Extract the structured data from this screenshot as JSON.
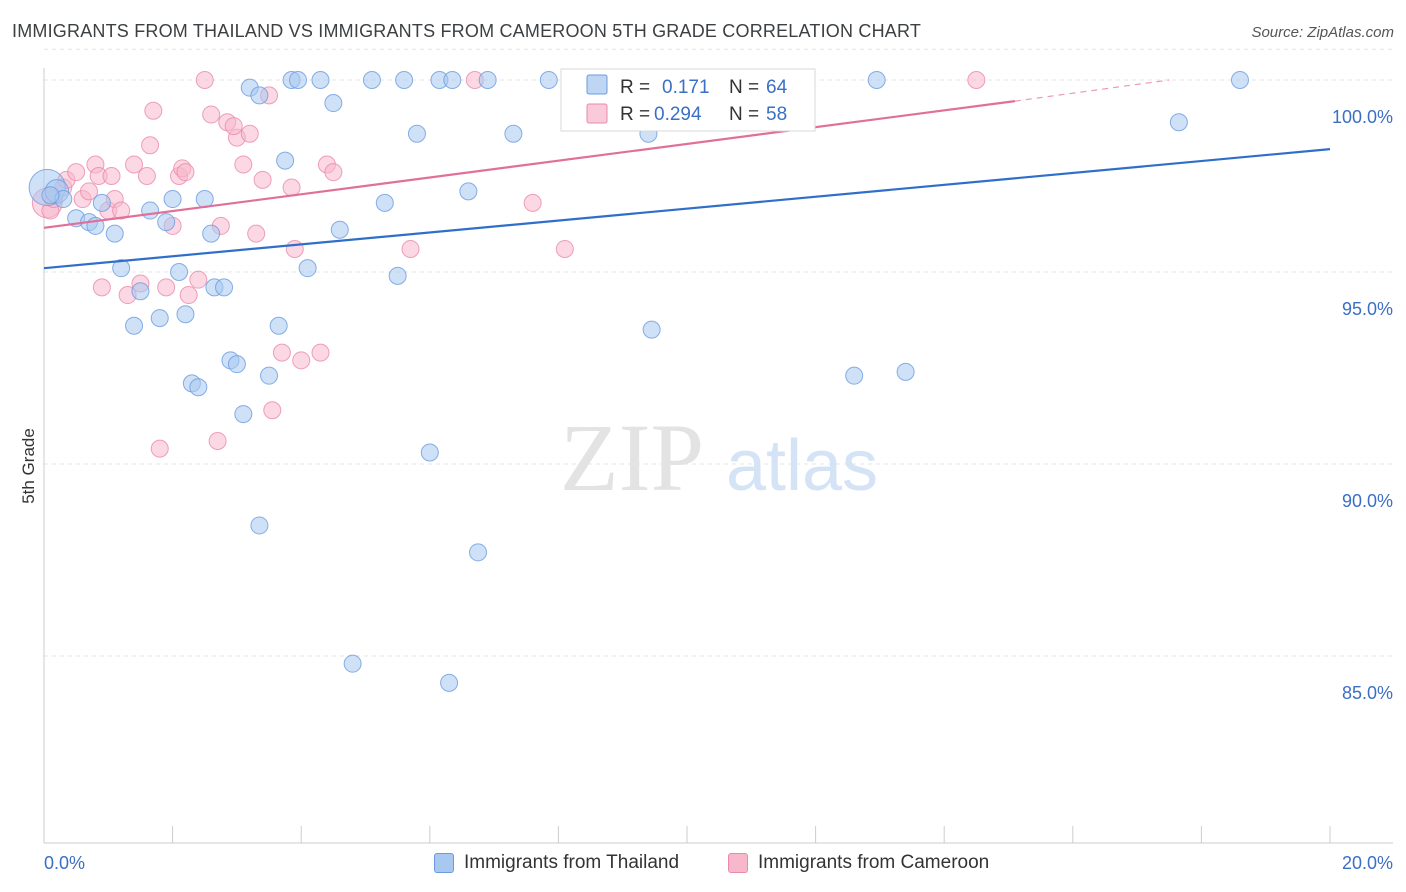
{
  "title": "IMMIGRANTS FROM THAILAND VS IMMIGRANTS FROM CAMEROON 5TH GRADE CORRELATION CHART",
  "source": "Source: ZipAtlas.com",
  "watermark": {
    "zip": "ZIP",
    "atlas": "atlas"
  },
  "legend": {
    "r_label": "R =",
    "n_label": "N =",
    "thailand": {
      "r": "0.171",
      "n": "64"
    },
    "cameroon": {
      "r": "0.294",
      "n": "58"
    }
  },
  "colors": {
    "thailand_fill": "#a8c8f0",
    "thailand_stroke": "#6a9be0",
    "thailand_line": "#2f6fc9",
    "cameroon_fill": "#f7b8cc",
    "cameroon_stroke": "#ea8aab",
    "cameroon_line": "#e0709a",
    "tick_text": "#3a6fc4"
  },
  "chart_data": {
    "type": "scatter",
    "xlabel": "",
    "ylabel": "5th Grade",
    "xlim": [
      0,
      20
    ],
    "ylim": [
      80,
      100.8
    ],
    "x_tick_labels": [
      "0.0%",
      "20.0%"
    ],
    "y_ticks": [
      85,
      90,
      95,
      100
    ],
    "y_tick_labels": [
      "85.0%",
      "90.0%",
      "95.0%",
      "100.0%"
    ],
    "grid": true,
    "legend_position": "top-center",
    "series": [
      {
        "name": "Immigrants from Thailand",
        "r": 0.171,
        "n": 64,
        "trend": {
          "x0": 0,
          "y0": 95.1,
          "x1": 20,
          "y1": 98.2
        },
        "points": [
          [
            0.05,
            97.2,
            22
          ],
          [
            0.2,
            97.1,
            14
          ],
          [
            0.3,
            96.9,
            10
          ],
          [
            0.5,
            96.4,
            10
          ],
          [
            0.7,
            96.3,
            10
          ],
          [
            0.8,
            96.2,
            10
          ],
          [
            1.1,
            96.0,
            10
          ],
          [
            1.2,
            95.1,
            10
          ],
          [
            1.4,
            93.6,
            10
          ],
          [
            1.5,
            94.5,
            10
          ],
          [
            1.65,
            96.6,
            10
          ],
          [
            1.8,
            93.8,
            10
          ],
          [
            1.9,
            96.3,
            10
          ],
          [
            2.0,
            96.9,
            10
          ],
          [
            2.1,
            95.0,
            10
          ],
          [
            2.2,
            93.9,
            10
          ],
          [
            2.3,
            92.1,
            10
          ],
          [
            2.4,
            92.0,
            10
          ],
          [
            2.5,
            96.9,
            10
          ],
          [
            2.65,
            94.6,
            10
          ],
          [
            2.8,
            94.6,
            10
          ],
          [
            2.9,
            92.7,
            10
          ],
          [
            3.0,
            92.6,
            10
          ],
          [
            3.1,
            91.3,
            10
          ],
          [
            3.2,
            99.8,
            10
          ],
          [
            3.35,
            99.6,
            10
          ],
          [
            3.35,
            88.4,
            10
          ],
          [
            3.5,
            92.3,
            10
          ],
          [
            3.65,
            93.6,
            10
          ],
          [
            3.75,
            97.9,
            10
          ],
          [
            3.85,
            100.0,
            10
          ],
          [
            3.95,
            100.0,
            10
          ],
          [
            4.1,
            95.1,
            10
          ],
          [
            4.3,
            100.0,
            10
          ],
          [
            4.5,
            99.4,
            10
          ],
          [
            4.6,
            96.1,
            10
          ],
          [
            4.8,
            84.8,
            10
          ],
          [
            5.1,
            100.0,
            10
          ],
          [
            5.3,
            96.8,
            10
          ],
          [
            5.5,
            94.9,
            10
          ],
          [
            5.6,
            100.0,
            10
          ],
          [
            5.8,
            98.6,
            10
          ],
          [
            6.0,
            90.3,
            10
          ],
          [
            6.15,
            100.0,
            10
          ],
          [
            6.3,
            84.3,
            10
          ],
          [
            6.35,
            100.0,
            10
          ],
          [
            6.6,
            97.1,
            10
          ],
          [
            6.75,
            87.7,
            10
          ],
          [
            6.9,
            100.0,
            10
          ],
          [
            7.3,
            98.6,
            10
          ],
          [
            7.85,
            100.0,
            10
          ],
          [
            9.4,
            98.6,
            10
          ],
          [
            9.45,
            93.5,
            10
          ],
          [
            9.6,
            100.0,
            10
          ],
          [
            11.4,
            100.0,
            10
          ],
          [
            11.5,
            100.0,
            10
          ],
          [
            12.6,
            92.3,
            10
          ],
          [
            12.95,
            100.0,
            10
          ],
          [
            13.4,
            92.4,
            10
          ],
          [
            17.65,
            98.9,
            10
          ],
          [
            18.6,
            100.0,
            10
          ],
          [
            0.1,
            97.0,
            10
          ],
          [
            0.9,
            96.8,
            10
          ],
          [
            2.6,
            96.0,
            10
          ]
        ]
      },
      {
        "name": "Immigrants from Cameroon",
        "r": 0.294,
        "n": 58,
        "trend": {
          "x0": 0,
          "y0": 96.15,
          "x1": 15.1,
          "y1": 99.45,
          "dash_to_x": 17.5,
          "dash_to_y": 100.0
        },
        "points": [
          [
            0.05,
            96.8,
            18
          ],
          [
            0.1,
            96.6,
            10
          ],
          [
            0.3,
            97.2,
            10
          ],
          [
            0.35,
            97.4,
            10
          ],
          [
            0.5,
            97.6,
            10
          ],
          [
            0.6,
            96.9,
            10
          ],
          [
            0.7,
            97.1,
            10
          ],
          [
            0.8,
            97.8,
            10
          ],
          [
            0.85,
            97.5,
            10
          ],
          [
            0.9,
            94.6,
            10
          ],
          [
            1.0,
            96.6,
            10
          ],
          [
            1.1,
            96.9,
            10
          ],
          [
            1.2,
            96.6,
            10
          ],
          [
            1.3,
            94.4,
            10
          ],
          [
            1.4,
            97.8,
            10
          ],
          [
            1.5,
            94.7,
            10
          ],
          [
            1.6,
            97.5,
            10
          ],
          [
            1.65,
            98.3,
            10
          ],
          [
            1.7,
            99.2,
            10
          ],
          [
            1.8,
            90.4,
            10
          ],
          [
            1.9,
            94.6,
            10
          ],
          [
            2.0,
            96.2,
            10
          ],
          [
            2.1,
            97.5,
            10
          ],
          [
            2.15,
            97.7,
            10
          ],
          [
            2.2,
            97.6,
            10
          ],
          [
            2.25,
            94.4,
            10
          ],
          [
            2.4,
            94.8,
            10
          ],
          [
            2.5,
            100.0,
            10
          ],
          [
            2.6,
            99.1,
            10
          ],
          [
            2.7,
            90.6,
            10
          ],
          [
            2.75,
            96.2,
            10
          ],
          [
            2.85,
            98.9,
            10
          ],
          [
            3.0,
            98.5,
            10
          ],
          [
            3.1,
            97.8,
            10
          ],
          [
            3.2,
            98.6,
            10
          ],
          [
            3.3,
            96.0,
            10
          ],
          [
            3.4,
            97.4,
            10
          ],
          [
            3.5,
            99.6,
            10
          ],
          [
            3.55,
            91.4,
            10
          ],
          [
            3.7,
            92.9,
            10
          ],
          [
            3.85,
            97.2,
            10
          ],
          [
            3.9,
            95.6,
            10
          ],
          [
            4.0,
            92.7,
            10
          ],
          [
            4.3,
            92.9,
            10
          ],
          [
            4.4,
            97.8,
            10
          ],
          [
            4.5,
            97.6,
            10
          ],
          [
            5.7,
            95.6,
            10
          ],
          [
            6.7,
            100.0,
            10
          ],
          [
            7.6,
            96.8,
            10
          ],
          [
            8.1,
            95.6,
            10
          ],
          [
            9.0,
            100.0,
            10
          ],
          [
            9.2,
            99.7,
            10
          ],
          [
            11.5,
            100.0,
            10
          ],
          [
            11.8,
            100.0,
            10
          ],
          [
            14.5,
            100.0,
            10
          ],
          [
            0.15,
            96.9,
            10
          ],
          [
            1.05,
            97.5,
            10
          ],
          [
            2.95,
            98.8,
            10
          ]
        ]
      }
    ]
  }
}
